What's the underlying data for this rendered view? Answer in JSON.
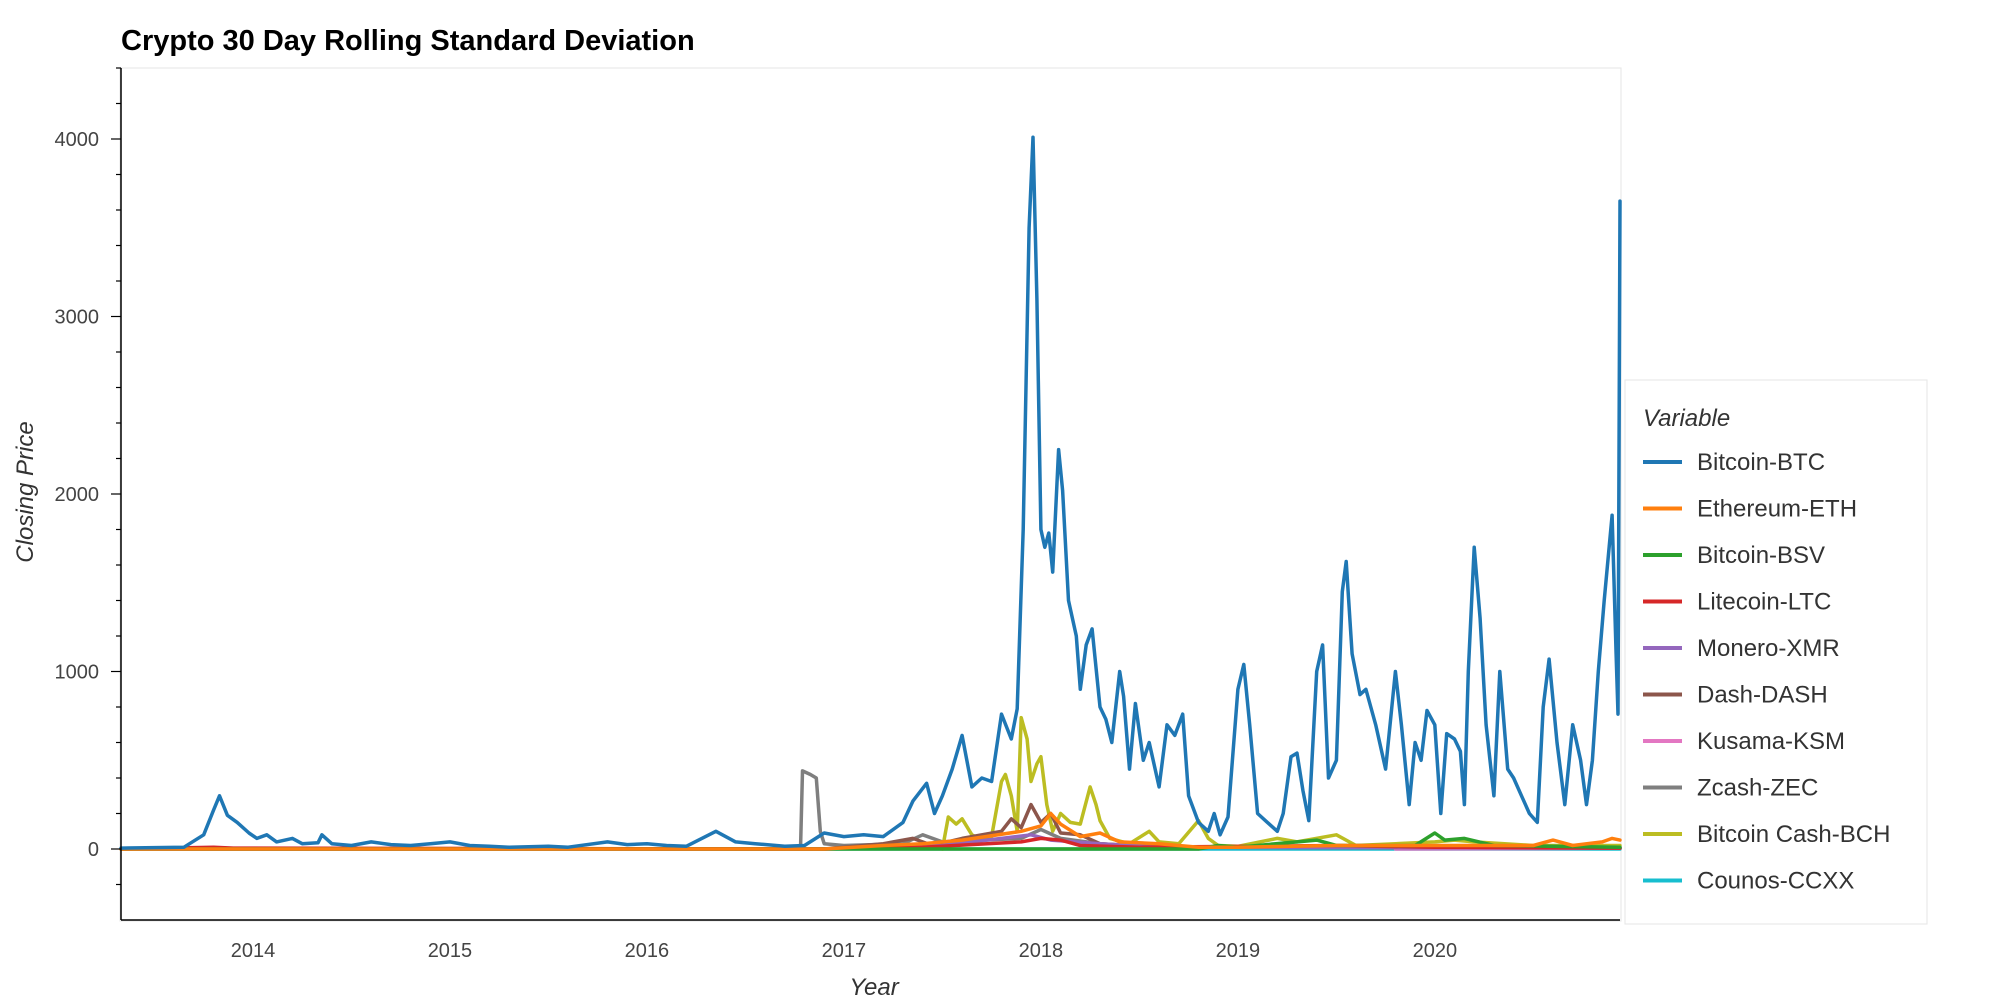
{
  "chart_data": {
    "type": "line",
    "title": "Crypto 30 Day Rolling Standard Deviation",
    "xlabel": "Year",
    "ylabel": "Closing Price",
    "xlim": [
      2013.33,
      2020.94
    ],
    "ylim": [
      -400,
      4400
    ],
    "x_ticks": [
      2014,
      2015,
      2016,
      2017,
      2018,
      2019,
      2020
    ],
    "y_ticks": [
      0,
      1000,
      2000,
      3000,
      4000
    ],
    "grid": false,
    "legend_title": "Variable",
    "legend_position": "right",
    "series": [
      {
        "name": "Bitcoin-BTC",
        "color": "#1f77b4",
        "points": [
          [
            2013.33,
            5
          ],
          [
            2013.5,
            8
          ],
          [
            2013.65,
            10
          ],
          [
            2013.75,
            80
          ],
          [
            2013.8,
            220
          ],
          [
            2013.83,
            300
          ],
          [
            2013.87,
            190
          ],
          [
            2013.92,
            150
          ],
          [
            2013.98,
            90
          ],
          [
            2014.02,
            60
          ],
          [
            2014.07,
            80
          ],
          [
            2014.12,
            40
          ],
          [
            2014.2,
            60
          ],
          [
            2014.25,
            30
          ],
          [
            2014.33,
            35
          ],
          [
            2014.35,
            80
          ],
          [
            2014.4,
            30
          ],
          [
            2014.5,
            20
          ],
          [
            2014.6,
            40
          ],
          [
            2014.7,
            25
          ],
          [
            2014.8,
            20
          ],
          [
            2014.9,
            30
          ],
          [
            2015.0,
            40
          ],
          [
            2015.1,
            20
          ],
          [
            2015.2,
            15
          ],
          [
            2015.3,
            10
          ],
          [
            2015.5,
            15
          ],
          [
            2015.6,
            10
          ],
          [
            2015.8,
            40
          ],
          [
            2015.9,
            25
          ],
          [
            2016.0,
            30
          ],
          [
            2016.1,
            20
          ],
          [
            2016.2,
            15
          ],
          [
            2016.35,
            100
          ],
          [
            2016.45,
            40
          ],
          [
            2016.55,
            30
          ],
          [
            2016.7,
            15
          ],
          [
            2016.8,
            20
          ],
          [
            2016.9,
            90
          ],
          [
            2017.0,
            70
          ],
          [
            2017.1,
            80
          ],
          [
            2017.2,
            70
          ],
          [
            2017.3,
            150
          ],
          [
            2017.35,
            270
          ],
          [
            2017.42,
            370
          ],
          [
            2017.46,
            200
          ],
          [
            2017.5,
            300
          ],
          [
            2017.55,
            450
          ],
          [
            2017.6,
            640
          ],
          [
            2017.65,
            350
          ],
          [
            2017.7,
            400
          ],
          [
            2017.75,
            380
          ],
          [
            2017.8,
            760
          ],
          [
            2017.85,
            620
          ],
          [
            2017.88,
            790
          ],
          [
            2017.91,
            1800
          ],
          [
            2017.94,
            3500
          ],
          [
            2017.96,
            4010
          ],
          [
            2017.98,
            3100
          ],
          [
            2018.0,
            1800
          ],
          [
            2018.02,
            1700
          ],
          [
            2018.04,
            1780
          ],
          [
            2018.06,
            1560
          ],
          [
            2018.09,
            2250
          ],
          [
            2018.11,
            2020
          ],
          [
            2018.14,
            1400
          ],
          [
            2018.18,
            1200
          ],
          [
            2018.2,
            900
          ],
          [
            2018.23,
            1150
          ],
          [
            2018.26,
            1240
          ],
          [
            2018.3,
            800
          ],
          [
            2018.33,
            730
          ],
          [
            2018.36,
            600
          ],
          [
            2018.4,
            1000
          ],
          [
            2018.42,
            860
          ],
          [
            2018.45,
            450
          ],
          [
            2018.48,
            820
          ],
          [
            2018.52,
            500
          ],
          [
            2018.55,
            600
          ],
          [
            2018.6,
            350
          ],
          [
            2018.64,
            700
          ],
          [
            2018.68,
            640
          ],
          [
            2018.72,
            760
          ],
          [
            2018.75,
            300
          ],
          [
            2018.8,
            150
          ],
          [
            2018.85,
            100
          ],
          [
            2018.88,
            200
          ],
          [
            2018.91,
            80
          ],
          [
            2018.95,
            180
          ],
          [
            2019.0,
            900
          ],
          [
            2019.03,
            1040
          ],
          [
            2019.06,
            700
          ],
          [
            2019.1,
            200
          ],
          [
            2019.15,
            150
          ],
          [
            2019.2,
            100
          ],
          [
            2019.23,
            200
          ],
          [
            2019.27,
            520
          ],
          [
            2019.3,
            540
          ],
          [
            2019.33,
            330
          ],
          [
            2019.36,
            160
          ],
          [
            2019.4,
            1000
          ],
          [
            2019.43,
            1150
          ],
          [
            2019.46,
            400
          ],
          [
            2019.5,
            500
          ],
          [
            2019.53,
            1450
          ],
          [
            2019.55,
            1620
          ],
          [
            2019.58,
            1100
          ],
          [
            2019.62,
            870
          ],
          [
            2019.65,
            900
          ],
          [
            2019.7,
            700
          ],
          [
            2019.75,
            450
          ],
          [
            2019.8,
            1000
          ],
          [
            2019.83,
            700
          ],
          [
            2019.87,
            250
          ],
          [
            2019.9,
            600
          ],
          [
            2019.93,
            500
          ],
          [
            2019.96,
            780
          ],
          [
            2020.0,
            700
          ],
          [
            2020.03,
            200
          ],
          [
            2020.06,
            650
          ],
          [
            2020.1,
            620
          ],
          [
            2020.13,
            550
          ],
          [
            2020.15,
            250
          ],
          [
            2020.17,
            1000
          ],
          [
            2020.2,
            1700
          ],
          [
            2020.23,
            1300
          ],
          [
            2020.26,
            700
          ],
          [
            2020.3,
            300
          ],
          [
            2020.33,
            1000
          ],
          [
            2020.37,
            450
          ],
          [
            2020.4,
            400
          ],
          [
            2020.44,
            300
          ],
          [
            2020.48,
            200
          ],
          [
            2020.52,
            150
          ],
          [
            2020.55,
            800
          ],
          [
            2020.58,
            1070
          ],
          [
            2020.62,
            600
          ],
          [
            2020.66,
            250
          ],
          [
            2020.7,
            700
          ],
          [
            2020.74,
            500
          ],
          [
            2020.77,
            250
          ],
          [
            2020.8,
            500
          ],
          [
            2020.83,
            1000
          ],
          [
            2020.86,
            1400
          ],
          [
            2020.9,
            1880
          ],
          [
            2020.92,
            1100
          ],
          [
            2020.93,
            760
          ],
          [
            2020.94,
            3650
          ]
        ]
      },
      {
        "name": "Ethereum-ETH",
        "color": "#ff7f0e",
        "points": [
          [
            2013.33,
            0
          ],
          [
            2016.9,
            0
          ],
          [
            2017.2,
            20
          ],
          [
            2017.4,
            30
          ],
          [
            2017.6,
            50
          ],
          [
            2017.9,
            100
          ],
          [
            2018.0,
            130
          ],
          [
            2018.05,
            200
          ],
          [
            2018.1,
            140
          ],
          [
            2018.2,
            70
          ],
          [
            2018.3,
            90
          ],
          [
            2018.4,
            40
          ],
          [
            2018.6,
            30
          ],
          [
            2018.8,
            10
          ],
          [
            2019.0,
            10
          ],
          [
            2019.5,
            20
          ],
          [
            2020.0,
            20
          ],
          [
            2020.5,
            20
          ],
          [
            2020.6,
            50
          ],
          [
            2020.7,
            20
          ],
          [
            2020.85,
            40
          ],
          [
            2020.9,
            60
          ],
          [
            2020.94,
            50
          ]
        ]
      },
      {
        "name": "Bitcoin-BSV",
        "color": "#2ca02c",
        "points": [
          [
            2013.33,
            0
          ],
          [
            2018.8,
            0
          ],
          [
            2018.9,
            20
          ],
          [
            2019.0,
            10
          ],
          [
            2019.4,
            50
          ],
          [
            2019.5,
            20
          ],
          [
            2019.9,
            20
          ],
          [
            2020.0,
            90
          ],
          [
            2020.05,
            50
          ],
          [
            2020.15,
            60
          ],
          [
            2020.3,
            20
          ],
          [
            2020.94,
            10
          ]
        ]
      },
      {
        "name": "Litecoin-LTC",
        "color": "#d62728",
        "points": [
          [
            2013.33,
            0
          ],
          [
            2013.8,
            10
          ],
          [
            2013.9,
            5
          ],
          [
            2016.9,
            0
          ],
          [
            2017.4,
            10
          ],
          [
            2017.9,
            40
          ],
          [
            2018.0,
            60
          ],
          [
            2018.1,
            50
          ],
          [
            2018.2,
            20
          ],
          [
            2018.5,
            10
          ],
          [
            2019.5,
            20
          ],
          [
            2020.0,
            10
          ],
          [
            2020.94,
            5
          ]
        ]
      },
      {
        "name": "Monero-XMR",
        "color": "#9467bd",
        "points": [
          [
            2013.33,
            0
          ],
          [
            2016.9,
            0
          ],
          [
            2017.5,
            20
          ],
          [
            2017.95,
            80
          ],
          [
            2018.05,
            50
          ],
          [
            2018.3,
            30
          ],
          [
            2018.6,
            10
          ],
          [
            2020.94,
            5
          ]
        ]
      },
      {
        "name": "Dash-DASH",
        "color": "#8c564b",
        "points": [
          [
            2013.33,
            0
          ],
          [
            2016.9,
            0
          ],
          [
            2017.2,
            30
          ],
          [
            2017.35,
            60
          ],
          [
            2017.45,
            20
          ],
          [
            2017.6,
            60
          ],
          [
            2017.8,
            100
          ],
          [
            2017.85,
            170
          ],
          [
            2017.9,
            120
          ],
          [
            2017.95,
            250
          ],
          [
            2018.0,
            150
          ],
          [
            2018.05,
            200
          ],
          [
            2018.1,
            90
          ],
          [
            2018.2,
            80
          ],
          [
            2018.3,
            30
          ],
          [
            2018.5,
            15
          ],
          [
            2019.0,
            10
          ],
          [
            2020.94,
            5
          ]
        ]
      },
      {
        "name": "Kusama-KSM",
        "color": "#e377c2",
        "points": [
          [
            2019.8,
            0
          ],
          [
            2020.5,
            2
          ],
          [
            2020.94,
            5
          ]
        ]
      },
      {
        "name": "Zcash-ZEC",
        "color": "#7f7f7f",
        "points": [
          [
            2013.33,
            0
          ],
          [
            2016.7,
            0
          ],
          [
            2016.78,
            20
          ],
          [
            2016.79,
            440
          ],
          [
            2016.83,
            420
          ],
          [
            2016.86,
            400
          ],
          [
            2016.88,
            100
          ],
          [
            2016.9,
            30
          ],
          [
            2017.0,
            20
          ],
          [
            2017.3,
            30
          ],
          [
            2017.4,
            80
          ],
          [
            2017.5,
            40
          ],
          [
            2017.9,
            60
          ],
          [
            2018.0,
            110
          ],
          [
            2018.1,
            60
          ],
          [
            2018.3,
            30
          ],
          [
            2018.6,
            10
          ],
          [
            2020.94,
            5
          ]
        ]
      },
      {
        "name": "Bitcoin Cash-BCH",
        "color": "#bcbd22",
        "points": [
          [
            2017.5,
            0
          ],
          [
            2017.53,
            180
          ],
          [
            2017.57,
            140
          ],
          [
            2017.6,
            170
          ],
          [
            2017.65,
            80
          ],
          [
            2017.7,
            50
          ],
          [
            2017.75,
            70
          ],
          [
            2017.8,
            380
          ],
          [
            2017.82,
            420
          ],
          [
            2017.85,
            300
          ],
          [
            2017.88,
            100
          ],
          [
            2017.9,
            740
          ],
          [
            2017.93,
            620
          ],
          [
            2017.95,
            380
          ],
          [
            2017.98,
            480
          ],
          [
            2018.0,
            520
          ],
          [
            2018.03,
            250
          ],
          [
            2018.06,
            100
          ],
          [
            2018.1,
            200
          ],
          [
            2018.15,
            150
          ],
          [
            2018.2,
            140
          ],
          [
            2018.25,
            350
          ],
          [
            2018.28,
            250
          ],
          [
            2018.3,
            160
          ],
          [
            2018.35,
            60
          ],
          [
            2018.45,
            30
          ],
          [
            2018.55,
            100
          ],
          [
            2018.6,
            40
          ],
          [
            2018.7,
            30
          ],
          [
            2018.8,
            160
          ],
          [
            2018.85,
            60
          ],
          [
            2018.9,
            20
          ],
          [
            2019.0,
            15
          ],
          [
            2019.2,
            60
          ],
          [
            2019.3,
            40
          ],
          [
            2019.5,
            80
          ],
          [
            2019.6,
            20
          ],
          [
            2019.8,
            30
          ],
          [
            2020.0,
            40
          ],
          [
            2020.1,
            50
          ],
          [
            2020.2,
            40
          ],
          [
            2020.5,
            20
          ],
          [
            2020.94,
            20
          ]
        ]
      },
      {
        "name": "Counos-CCXX",
        "color": "#17becf",
        "points": [
          [
            2013.33,
            0
          ],
          [
            2020.94,
            0
          ]
        ]
      }
    ]
  }
}
